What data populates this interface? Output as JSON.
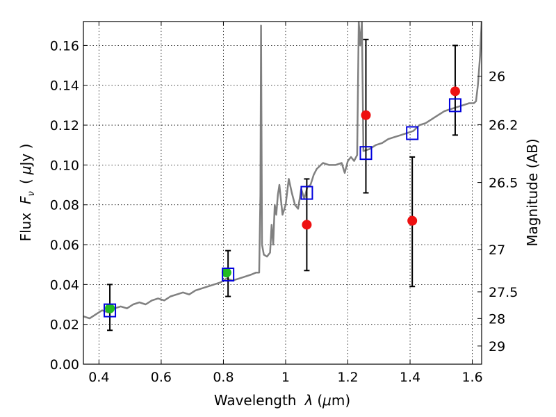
{
  "chart_data": {
    "type": "scatter",
    "title": "",
    "xlabel": {
      "prefix": "Wavelength",
      "symbol": "λ",
      "unit_open": "(",
      "unit_mu": "μ",
      "unit_rest": "m)"
    },
    "ylabel": {
      "prefix": "Flux",
      "symbol": "F",
      "subscript": "ν",
      "unit_open": "(",
      "unit_mu": "μ",
      "unit_rest": "Jy )"
    },
    "y2label": "Magnitude (AB)",
    "xlim": [
      0.35,
      1.63
    ],
    "ylim": [
      0.0,
      0.172
    ],
    "grid": true,
    "xticks": [
      {
        "value": 0.4,
        "label": "0.4"
      },
      {
        "value": 0.6,
        "label": "0.6"
      },
      {
        "value": 0.8,
        "label": "0.8"
      },
      {
        "value": 1.0,
        "label": "1"
      },
      {
        "value": 1.2,
        "label": "1.2"
      },
      {
        "value": 1.4,
        "label": "1.4"
      },
      {
        "value": 1.6,
        "label": "1.6"
      }
    ],
    "yticks": [
      {
        "value": 0.0,
        "label": "0.00"
      },
      {
        "value": 0.02,
        "label": "0.02"
      },
      {
        "value": 0.04,
        "label": "0.04"
      },
      {
        "value": 0.06,
        "label": "0.06"
      },
      {
        "value": 0.08,
        "label": "0.08"
      },
      {
        "value": 0.1,
        "label": "0.10"
      },
      {
        "value": 0.12,
        "label": "0.12"
      },
      {
        "value": 0.14,
        "label": "0.14"
      },
      {
        "value": 0.16,
        "label": "0.16"
      }
    ],
    "y2ticks": [
      {
        "value": 26,
        "label": "26"
      },
      {
        "value": 26.2,
        "label": "26.2"
      },
      {
        "value": 26.5,
        "label": "26.5"
      },
      {
        "value": 27,
        "label": "27"
      },
      {
        "value": 27.5,
        "label": "27.5"
      },
      {
        "value": 28,
        "label": "28"
      },
      {
        "value": 29,
        "label": "29"
      }
    ],
    "spectrum": {
      "color": "#808080",
      "x": [
        0.35,
        0.37,
        0.39,
        0.41,
        0.43,
        0.45,
        0.47,
        0.49,
        0.51,
        0.53,
        0.55,
        0.57,
        0.59,
        0.61,
        0.63,
        0.65,
        0.67,
        0.69,
        0.71,
        0.73,
        0.75,
        0.77,
        0.79,
        0.81,
        0.83,
        0.85,
        0.87,
        0.89,
        0.905,
        0.915,
        0.919,
        0.921,
        0.924,
        0.93,
        0.94,
        0.95,
        0.955,
        0.96,
        0.965,
        0.97,
        0.975,
        0.98,
        0.99,
        1.0,
        1.01,
        1.02,
        1.03,
        1.04,
        1.05,
        1.06,
        1.07,
        1.08,
        1.09,
        1.1,
        1.12,
        1.14,
        1.16,
        1.18,
        1.19,
        1.2,
        1.21,
        1.22,
        1.23,
        1.235,
        1.24,
        1.245,
        1.25,
        1.27,
        1.29,
        1.31,
        1.33,
        1.35,
        1.37,
        1.39,
        1.41,
        1.43,
        1.45,
        1.47,
        1.49,
        1.51,
        1.53,
        1.55,
        1.57,
        1.59,
        1.605,
        1.612,
        1.618,
        1.625,
        1.63
      ],
      "y": [
        0.024,
        0.023,
        0.025,
        0.027,
        0.026,
        0.028,
        0.029,
        0.028,
        0.03,
        0.031,
        0.03,
        0.032,
        0.033,
        0.032,
        0.034,
        0.035,
        0.036,
        0.035,
        0.037,
        0.038,
        0.039,
        0.04,
        0.041,
        0.043,
        0.042,
        0.043,
        0.044,
        0.045,
        0.046,
        0.046,
        0.085,
        0.17,
        0.06,
        0.055,
        0.054,
        0.056,
        0.07,
        0.06,
        0.08,
        0.075,
        0.085,
        0.09,
        0.075,
        0.08,
        0.093,
        0.086,
        0.08,
        0.078,
        0.088,
        0.083,
        0.089,
        0.09,
        0.095,
        0.098,
        0.101,
        0.1,
        0.1,
        0.101,
        0.096,
        0.102,
        0.104,
        0.102,
        0.105,
        0.172,
        0.16,
        0.172,
        0.107,
        0.108,
        0.11,
        0.111,
        0.113,
        0.114,
        0.115,
        0.116,
        0.117,
        0.12,
        0.121,
        0.123,
        0.125,
        0.127,
        0.128,
        0.129,
        0.13,
        0.131,
        0.131,
        0.132,
        0.14,
        0.155,
        0.172
      ]
    },
    "series": [
      {
        "marker": "circle",
        "color": "#22bb22",
        "x": [
          0.435,
          0.81
        ],
        "y": [
          0.028,
          0.046
        ]
      },
      {
        "marker": "circle",
        "color": "#ee1111",
        "x": [
          1.068,
          1.258,
          1.407,
          1.545
        ],
        "y": [
          0.07,
          0.125,
          0.072,
          0.137
        ]
      },
      {
        "marker": "open-square",
        "color": "#0000dd",
        "x": [
          0.435,
          0.815,
          1.068,
          1.258,
          1.407,
          1.545
        ],
        "y": [
          0.027,
          0.045,
          0.086,
          0.106,
          0.116,
          0.13
        ]
      }
    ],
    "errorbars": [
      {
        "x": 0.435,
        "ylow": 0.017,
        "yhigh": 0.04
      },
      {
        "x": 0.815,
        "ylow": 0.034,
        "yhigh": 0.057
      },
      {
        "x": 1.068,
        "ylow": 0.047,
        "yhigh": 0.093
      },
      {
        "x": 1.258,
        "ylow": 0.086,
        "yhigh": 0.163
      },
      {
        "x": 1.407,
        "ylow": 0.039,
        "yhigh": 0.104
      },
      {
        "x": 1.545,
        "ylow": 0.115,
        "yhigh": 0.16
      }
    ]
  }
}
